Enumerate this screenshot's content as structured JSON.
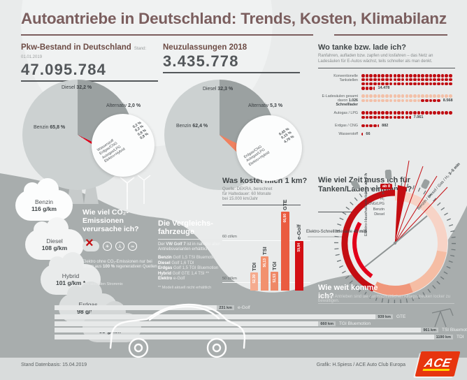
{
  "header": {
    "title": "Autoantriebe in Deutschland: Trends, Kosten, Klimabilanz"
  },
  "bestand": {
    "heading": "Pkw-Bestand in Deutschland",
    "stand": "Stand: 01.01.2019",
    "number": "47.095.784",
    "slices": [
      {
        "name": "Diesel",
        "value": "32,2 %",
        "pct": 32.2
      },
      {
        "name": "Alternativ",
        "value": "2,0 %",
        "pct": 2.0
      },
      {
        "name": "Benzin",
        "value": "65,8 %",
        "pct": 65.8
      }
    ],
    "breakdown": [
      {
        "name": "Wasserstoff",
        "value": "0,2 %"
      },
      {
        "name": "Erdgas/CNG",
        "value": "0,2 %"
      },
      {
        "name": "Autogas/LPG",
        "value": "0,8 %"
      },
      {
        "name": "Elektro+Hybrid",
        "value": "0,8 %"
      }
    ]
  },
  "neuzulassungen": {
    "heading": "Neuzulassungen 2018",
    "number": "3.435.778",
    "slices": [
      {
        "name": "Diesel",
        "value": "32,3 %",
        "pct": 32.3
      },
      {
        "name": "Alternativ",
        "value": "5,3 %",
        "pct": 5.3
      },
      {
        "name": "Benzin",
        "value": "62,4 %",
        "pct": 62.4
      }
    ],
    "breakdown": [
      {
        "name": "Erdgas/CNG",
        "value": "0,45 %"
      },
      {
        "name": "Autogas/LPG",
        "value": "0,15 %"
      },
      {
        "name": "Elektro+Hybrid",
        "value": "4,70 %"
      }
    ]
  },
  "tanken": {
    "heading": "Wo tanke bzw. lade ich?",
    "subtitle": "Ranfahren, aufladen bzw. zapfen und losfahren – das Netz an Ladesäulen für E-Autos wächst, teils schneller als man denkt.",
    "rows": [
      {
        "label": "Konventionelle Tankstellen",
        "value": "14.478",
        "dots": 72,
        "dark_last": 0,
        "style": "dark",
        "half": true
      },
      {
        "label": "E-Ladesäulen gesamt",
        "label2_pre": "davon ",
        "label2_bold": "1.026 Schnelllader",
        "value": "8.568",
        "dots": 43,
        "dark_last": 5,
        "style": "light",
        "half": false
      },
      {
        "label": "Autogas / LPG",
        "value": "7.061",
        "dots": 35,
        "dark_last": 0,
        "style": "dark",
        "half": true
      },
      {
        "label": "Erdgas / CNG",
        "value": "882",
        "dots": 4,
        "dark_last": 0,
        "style": "dark",
        "half": true
      },
      {
        "label": "Wasserstoff",
        "value": "66",
        "dots": 0,
        "dark_last": 0,
        "style": "dark",
        "half": true
      }
    ]
  },
  "co2": {
    "heading": "Wie viel CO₂-Emissionen verursache ich?",
    "clouds": [
      {
        "name": "Benzin",
        "value": "116 g/km"
      },
      {
        "name": "Diesel",
        "value": "108 g/km"
      },
      {
        "name": "Hybrid",
        "value": "101 g/km *"
      },
      {
        "name": "Erdgas",
        "value": "98 g/km"
      },
      {
        "name": "Elektro",
        "value": "65 g/km *"
      }
    ],
    "note_pre": "Elektro ohne CO₂-Emissionen nur bei Strom aus ",
    "note_bold": "100 %",
    "note_post": " regenerativen Quellen",
    "footnote": "* im aktuellen Strommix"
  },
  "vergleich": {
    "heading": "Die Vergleichs­fahrzeuge",
    "intro_pre": "Der ",
    "intro_bold": "VW Golf 7",
    "intro_post": " ist in nahezu allen Antriebsvarianten erhältlich.",
    "items": [
      {
        "fuel": "Benzin",
        "model": "Golf 1,5 TSI Bluemotion"
      },
      {
        "fuel": "Diesel",
        "model": "Golf 1,6 TDI"
      },
      {
        "fuel": "Erdgas",
        "model": "Golf 1,5 TGI Bluemotion"
      },
      {
        "fuel": "Hybrid",
        "model": "Golf GTE 1,4 TSI **"
      },
      {
        "fuel": "Elektro",
        "model": "e-Golf"
      }
    ],
    "footnote": "** Modell aktuell nicht erhältlich"
  },
  "kosten": {
    "heading": "Was kostet mich 1 km?",
    "source": "Quelle: DEKRA, berechnet\nfür Haltedauer: 60 Monate\nbei 15.000 km/Jahr",
    "gridlines": [
      "60 ct/km",
      "50 ct/km"
    ],
    "bars": [
      {
        "label": "TDI",
        "value": 52.39,
        "display": "52,39"
      },
      {
        "label": "TSI",
        "value": 56.13,
        "display": "56,13"
      },
      {
        "label": "TGI",
        "value": 52.53,
        "display": "52,53"
      },
      {
        "label": "GTE",
        "value": 66.9,
        "display": "66,90"
      },
      {
        "label": "e-Golf",
        "value": 59.84,
        "display": "59,84"
      }
    ]
  },
  "zeit": {
    "heading": "Wie viel Zeit muss ich für Tanken/Laden einplanen?",
    "label_schnell_pre": "Elektro-Schnellladesäule ",
    "label_schnell_bold": "45 min",
    "label_haushalt_pre": "Elektro-Haushaltssteckdose ",
    "label_haushalt_bold": "ab 8 h",
    "label_tanken_pre": "Benzin / Diesel / Gas / H₂  ",
    "label_tanken_bold": "3–5 min",
    "badge": "ab 8",
    "center_rows": [
      "E",
      "H₂",
      "CNG/LPG",
      "Benzin",
      "Diesel"
    ]
  },
  "reichweite": {
    "heading": "Wie weit komme ich?",
    "subtitle": "Mit allen Antrieben sind die durchschnittlichen Alltagsstrecken locker zu bewältigen.",
    "rows": [
      {
        "km": "231 km",
        "label": "e-Golf"
      },
      {
        "km": "939 km",
        "label": "GTE"
      },
      {
        "km": "660 km",
        "label": "TGI Bluemotion"
      },
      {
        "km": "961 km",
        "label": "TSI Bluemotion"
      },
      {
        "km": "1190 km",
        "label": "TDI"
      }
    ]
  },
  "footer": {
    "left": "Stand Datenbasis: 15.04.2019",
    "right": "Grafik: H.Spiess / ACE Auto Club Europa",
    "logo": "ACE"
  },
  "chart_data": [
    {
      "type": "pie",
      "title": "Pkw-Bestand in Deutschland",
      "subtitle": "Stand: 01.01.2019",
      "total": 47095784,
      "labels": [
        "Diesel",
        "Alternativ",
        "Benzin"
      ],
      "values": [
        32.2,
        2.0,
        65.8
      ],
      "breakdown": {
        "Wasserstoff": 0.2,
        "Erdgas/CNG": 0.2,
        "Autogas/LPG": 0.8,
        "Elektro+Hybrid": 0.8
      }
    },
    {
      "type": "pie",
      "title": "Neuzulassungen 2018",
      "total": 3435778,
      "labels": [
        "Diesel",
        "Alternativ",
        "Benzin"
      ],
      "values": [
        32.3,
        5.3,
        62.4
      ],
      "breakdown": {
        "Erdgas/CNG": 0.45,
        "Autogas/LPG": 0.15,
        "Elektro+Hybrid": 4.7
      }
    },
    {
      "type": "heatmap",
      "title": "Wo tanke bzw. lade ich?",
      "unit": "Stationen, 1 Punkt ≈ 200",
      "categories": [
        "Konventionelle Tankstellen",
        "E-Ladesäulen gesamt",
        "Autogas / LPG",
        "Erdgas / CNG",
        "Wasserstoff"
      ],
      "values": [
        14478,
        8568,
        7061,
        882,
        66
      ],
      "note": "davon 1.026 Schnelllader"
    },
    {
      "type": "bar",
      "title": "Was kostet mich 1 km?",
      "ylabel": "ct/km",
      "ylim": [
        48,
        68
      ],
      "gridlines": [
        50,
        60
      ],
      "categories": [
        "TDI",
        "TSI",
        "TGI",
        "GTE",
        "e-Golf"
      ],
      "values": [
        52.39,
        56.13,
        52.53,
        66.9,
        59.84
      ]
    },
    {
      "type": "bar",
      "title": "Wie weit komme ich?",
      "unit": "km",
      "categories": [
        "e-Golf",
        "GTE",
        "TGI Bluemotion",
        "TSI Bluemotion",
        "TDI"
      ],
      "values": [
        231,
        939,
        660,
        961,
        1190
      ]
    },
    {
      "type": "bar",
      "title": "CO₂-Emissionen",
      "unit": "g/km",
      "categories": [
        "Benzin",
        "Diesel",
        "Hybrid",
        "Erdgas",
        "Elektro"
      ],
      "values": [
        116,
        108,
        101,
        98,
        65
      ]
    },
    {
      "type": "table",
      "title": "Wie viel Zeit muss ich für Tanken/Laden einplanen?",
      "categories": [
        "Elektro-Haushaltssteckdose",
        "Elektro-Schnellladesäule",
        "Benzin / Diesel / Gas / H₂"
      ],
      "values": [
        "ab 8 h",
        "45 min",
        "3–5 min"
      ]
    }
  ]
}
